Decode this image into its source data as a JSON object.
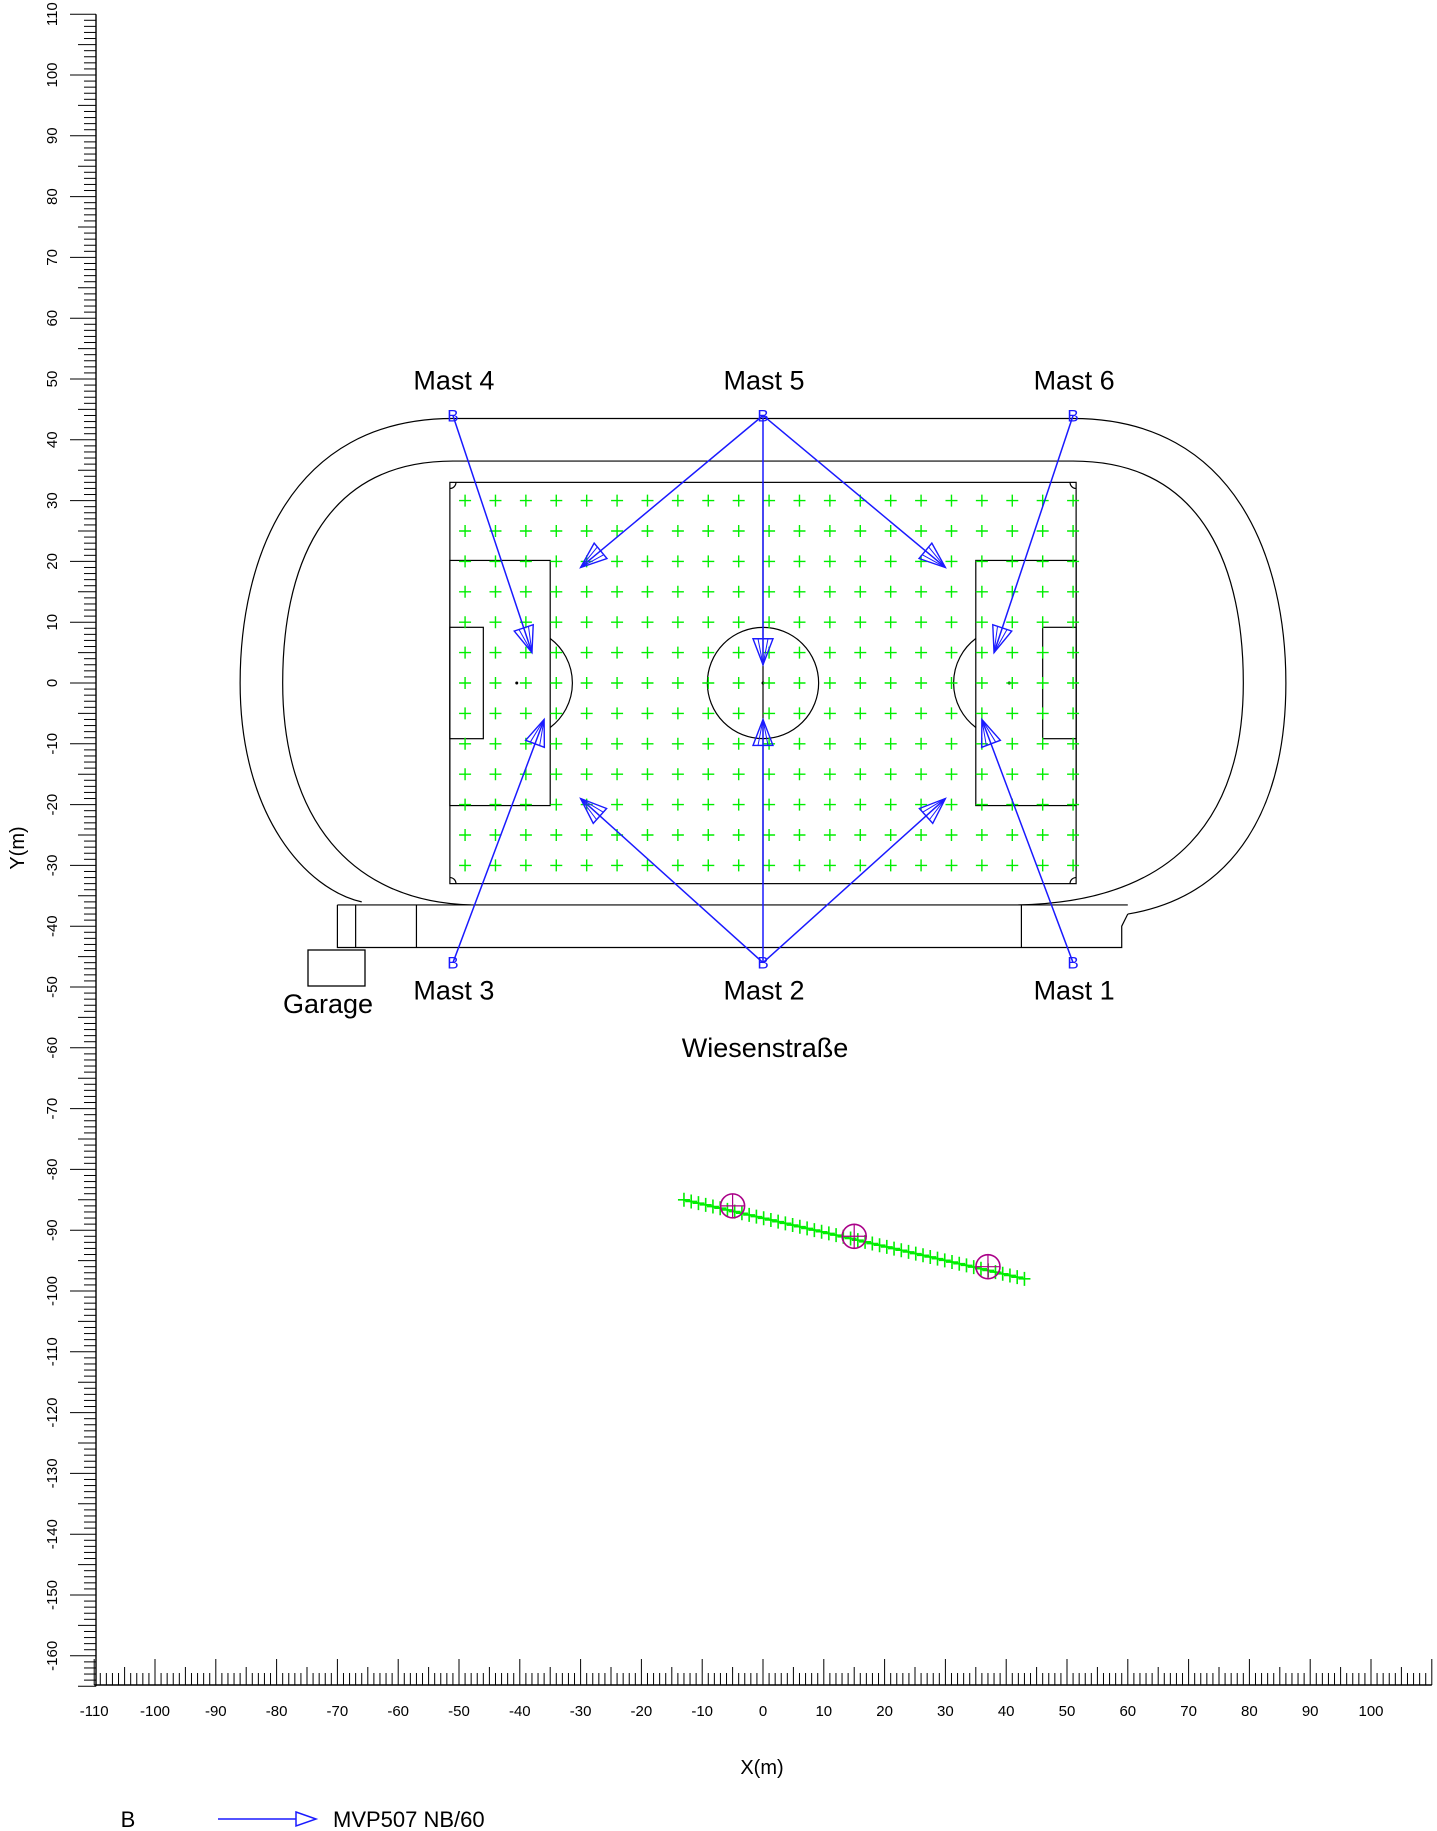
{
  "axes": {
    "x_label": "X(m)",
    "y_label": "Y(m)",
    "x_ticks": [
      -110,
      -100,
      -90,
      -80,
      -70,
      -60,
      -50,
      -40,
      -30,
      -20,
      -10,
      0,
      10,
      20,
      30,
      40,
      50,
      60,
      70,
      80,
      90,
      100
    ],
    "y_ticks": [
      110,
      100,
      90,
      80,
      70,
      60,
      50,
      40,
      30,
      20,
      10,
      0,
      -10,
      -20,
      -30,
      -40,
      -50,
      -60,
      -70,
      -80,
      -90,
      -100,
      -110,
      -120,
      -130,
      -140,
      -150,
      -160
    ],
    "x_range": [
      -110,
      110
    ],
    "y_range": [
      -165,
      110
    ]
  },
  "masts": [
    {
      "name": "Mast 1",
      "x": 51,
      "y": -46,
      "label_pos": "below"
    },
    {
      "name": "Mast 2",
      "x": 0,
      "y": -46,
      "label_pos": "below"
    },
    {
      "name": "Mast 3",
      "x": -51,
      "y": -46,
      "label_pos": "below"
    },
    {
      "name": "Mast 4",
      "x": -51,
      "y": 44,
      "label_pos": "above"
    },
    {
      "name": "Mast 5",
      "x": 0,
      "y": 44,
      "label_pos": "above"
    },
    {
      "name": "Mast 6",
      "x": 51,
      "y": 44,
      "label_pos": "above"
    }
  ],
  "mast_marker": "B",
  "aims": [
    {
      "from": "Mast 4",
      "to": [
        -38,
        5
      ]
    },
    {
      "from": "Mast 5",
      "to": [
        -30,
        19
      ]
    },
    {
      "from": "Mast 5",
      "to": [
        0,
        3
      ]
    },
    {
      "from": "Mast 5",
      "to": [
        30,
        19
      ]
    },
    {
      "from": "Mast 6",
      "to": [
        38,
        5
      ]
    },
    {
      "from": "Mast 3",
      "to": [
        -36,
        -6
      ]
    },
    {
      "from": "Mast 2",
      "to": [
        -30,
        -19
      ]
    },
    {
      "from": "Mast 2",
      "to": [
        0,
        -6
      ]
    },
    {
      "from": "Mast 2",
      "to": [
        30,
        -19
      ]
    },
    {
      "from": "Mast 1",
      "to": [
        36,
        -6
      ]
    }
  ],
  "field": {
    "x": [
      -51.5,
      51.5
    ],
    "y": [
      -33,
      33
    ]
  },
  "grid_points": {
    "x_start": -49,
    "x_step": 5,
    "x_count": 21,
    "y_start": 30,
    "y_step": -5,
    "y_count": 13
  },
  "measurement_line": {
    "from": [
      -13,
      -85
    ],
    "to": [
      43,
      -98
    ],
    "points": 48
  },
  "observation_points": [
    [
      -5,
      -86
    ],
    [
      15,
      -91
    ],
    [
      37,
      -96
    ]
  ],
  "labels": {
    "garage": "Garage",
    "street": "Wiesenstraße"
  },
  "legend": {
    "marker": "B",
    "luminaire": "MVP507 NB/60"
  },
  "colors": {
    "aim": "#1a1aff",
    "grid": "#00ee00",
    "observer": "#aa0088",
    "outline": "#000000"
  }
}
